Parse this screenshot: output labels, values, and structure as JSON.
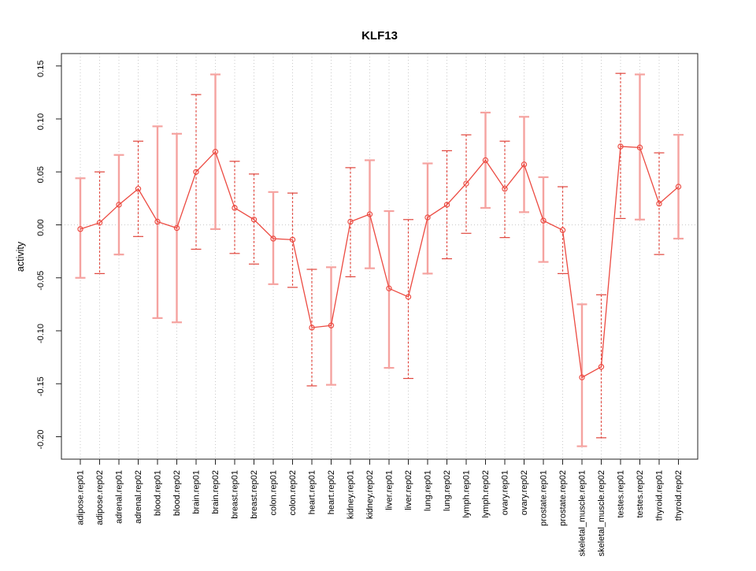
{
  "chart_data": {
    "type": "line",
    "title": "KLF13",
    "xlabel": "",
    "ylabel": "activity",
    "legend": "none",
    "grid": "vertical dotted per category, horizontal dotted at y=0",
    "x_tick_rotation": -90,
    "ylim": [
      -0.221,
      0.162
    ],
    "ytick_values": [
      0.15,
      0.1,
      0.05,
      0.0,
      -0.05,
      -0.1,
      -0.15,
      -0.2
    ],
    "ytick_labels": [
      "0.15",
      "0.10",
      "0.05",
      "0.00",
      "-0.05",
      "-0.10",
      "-0.15",
      "-0.20"
    ],
    "colors": {
      "series_line": "#EC4A41",
      "point_stroke": "#EC4A41",
      "bar_solid": "#F5A3A0",
      "bar_dashed": "#E0453C",
      "grid": "#C9C9C9",
      "axis": "#222222",
      "background": "#FFFFFF"
    },
    "points": [
      {
        "label": "adipose.rep01",
        "value": -0.004,
        "lo": -0.05,
        "hi": 0.044,
        "bar": "solid"
      },
      {
        "label": "adipose.rep02",
        "value": 0.002,
        "lo": -0.046,
        "hi": 0.05,
        "bar": "dashed"
      },
      {
        "label": "adrenal.rep01",
        "value": 0.019,
        "lo": -0.028,
        "hi": 0.066,
        "bar": "solid"
      },
      {
        "label": "adrenal.rep02",
        "value": 0.034,
        "lo": -0.011,
        "hi": 0.079,
        "bar": "dashed"
      },
      {
        "label": "blood.rep01",
        "value": 0.003,
        "lo": -0.088,
        "hi": 0.093,
        "bar": "solid"
      },
      {
        "label": "blood.rep02",
        "value": -0.003,
        "lo": -0.092,
        "hi": 0.086,
        "bar": "solid"
      },
      {
        "label": "brain.rep01",
        "value": 0.05,
        "lo": -0.023,
        "hi": 0.123,
        "bar": "dashed"
      },
      {
        "label": "brain.rep02",
        "value": 0.069,
        "lo": -0.004,
        "hi": 0.142,
        "bar": "solid"
      },
      {
        "label": "breast.rep01",
        "value": 0.016,
        "lo": -0.027,
        "hi": 0.06,
        "bar": "dashed"
      },
      {
        "label": "breast.rep02",
        "value": 0.005,
        "lo": -0.037,
        "hi": 0.048,
        "bar": "dashed"
      },
      {
        "label": "colon.rep01",
        "value": -0.013,
        "lo": -0.056,
        "hi": 0.031,
        "bar": "solid"
      },
      {
        "label": "colon.rep02",
        "value": -0.014,
        "lo": -0.059,
        "hi": 0.03,
        "bar": "dashed"
      },
      {
        "label": "heart.rep01",
        "value": -0.097,
        "lo": -0.152,
        "hi": -0.042,
        "bar": "dashed"
      },
      {
        "label": "heart.rep02",
        "value": -0.095,
        "lo": -0.151,
        "hi": -0.04,
        "bar": "solid"
      },
      {
        "label": "kidney.rep01",
        "value": 0.003,
        "lo": -0.049,
        "hi": 0.054,
        "bar": "dashed"
      },
      {
        "label": "kidney.rep02",
        "value": 0.01,
        "lo": -0.041,
        "hi": 0.061,
        "bar": "solid"
      },
      {
        "label": "liver.rep01",
        "value": -0.06,
        "lo": -0.135,
        "hi": 0.013,
        "bar": "solid"
      },
      {
        "label": "liver.rep02",
        "value": -0.068,
        "lo": -0.145,
        "hi": 0.005,
        "bar": "dashed"
      },
      {
        "label": "lung.rep01",
        "value": 0.007,
        "lo": -0.046,
        "hi": 0.058,
        "bar": "solid"
      },
      {
        "label": "lung.rep02",
        "value": 0.019,
        "lo": -0.032,
        "hi": 0.07,
        "bar": "dashed"
      },
      {
        "label": "lymph.rep01",
        "value": 0.039,
        "lo": -0.008,
        "hi": 0.085,
        "bar": "dashed"
      },
      {
        "label": "lymph.rep02",
        "value": 0.061,
        "lo": 0.016,
        "hi": 0.106,
        "bar": "solid"
      },
      {
        "label": "ovary.rep01",
        "value": 0.034,
        "lo": -0.012,
        "hi": 0.079,
        "bar": "dashed"
      },
      {
        "label": "ovary.rep02",
        "value": 0.057,
        "lo": 0.012,
        "hi": 0.102,
        "bar": "solid"
      },
      {
        "label": "prostate.rep01",
        "value": 0.004,
        "lo": -0.035,
        "hi": 0.045,
        "bar": "solid"
      },
      {
        "label": "prostate.rep02",
        "value": -0.005,
        "lo": -0.046,
        "hi": 0.036,
        "bar": "dashed"
      },
      {
        "label": "skeletal_muscle.rep01",
        "value": -0.144,
        "lo": -0.209,
        "hi": -0.075,
        "bar": "solid"
      },
      {
        "label": "skeletal_muscle.rep02",
        "value": -0.134,
        "lo": -0.201,
        "hi": -0.066,
        "bar": "dashed"
      },
      {
        "label": "testes.rep01",
        "value": 0.074,
        "lo": 0.006,
        "hi": 0.143,
        "bar": "dashed"
      },
      {
        "label": "testes.rep02",
        "value": 0.073,
        "lo": 0.005,
        "hi": 0.142,
        "bar": "solid"
      },
      {
        "label": "thyroid.rep01",
        "value": 0.02,
        "lo": -0.028,
        "hi": 0.068,
        "bar": "dashed"
      },
      {
        "label": "thyroid.rep02",
        "value": 0.036,
        "lo": -0.013,
        "hi": 0.085,
        "bar": "solid"
      }
    ]
  }
}
